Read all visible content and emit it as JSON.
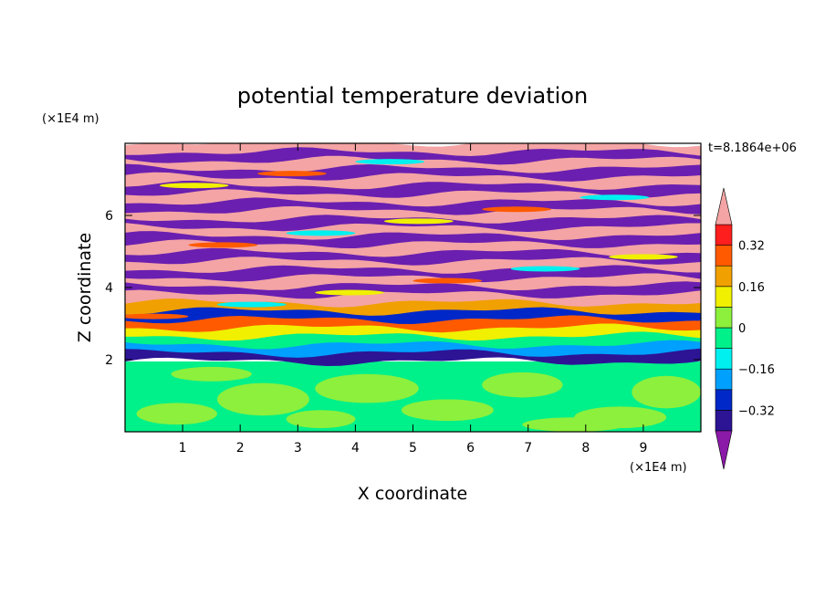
{
  "chart_data": {
    "type": "heatmap",
    "title": "potential temperature deviation",
    "xlabel": "X coordinate",
    "ylabel": "Z coordinate",
    "x_unit": "(×1E4 m)",
    "y_unit": "(×1E4 m)",
    "time_label": "t=8.1864e+06",
    "xlim": [
      0,
      10
    ],
    "ylim": [
      0,
      8
    ],
    "x_ticks": [
      "1",
      "2",
      "3",
      "4",
      "5",
      "6",
      "7",
      "8",
      "9"
    ],
    "y_ticks": [
      "2",
      "4",
      "6"
    ],
    "colorbar": {
      "labels": [
        "0.32",
        "0.16",
        "0",
        "−0.16",
        "−0.32"
      ],
      "label_values": [
        0.32,
        0.16,
        0,
        -0.16,
        -0.32
      ],
      "levels": [
        -0.4,
        -0.32,
        -0.24,
        -0.16,
        -0.08,
        0,
        0.08,
        0.16,
        0.24,
        0.32,
        0.4
      ],
      "colors": [
        "#8b1aa8",
        "#2c1495",
        "#0028c8",
        "#00a0ff",
        "#00f0f0",
        "#00f08a",
        "#8cf03c",
        "#f0f000",
        "#f0a000",
        "#ff5a00",
        "#ff1e1e",
        "#f4a4a4"
      ]
    },
    "description_regions": {
      "lower_layer_z_max": 1.95,
      "lower_layer_colors": [
        "#00f08a",
        "#8cf03c"
      ],
      "upper_layer_colors": [
        "#f4a4a4",
        "#6a1fb0"
      ]
    }
  }
}
